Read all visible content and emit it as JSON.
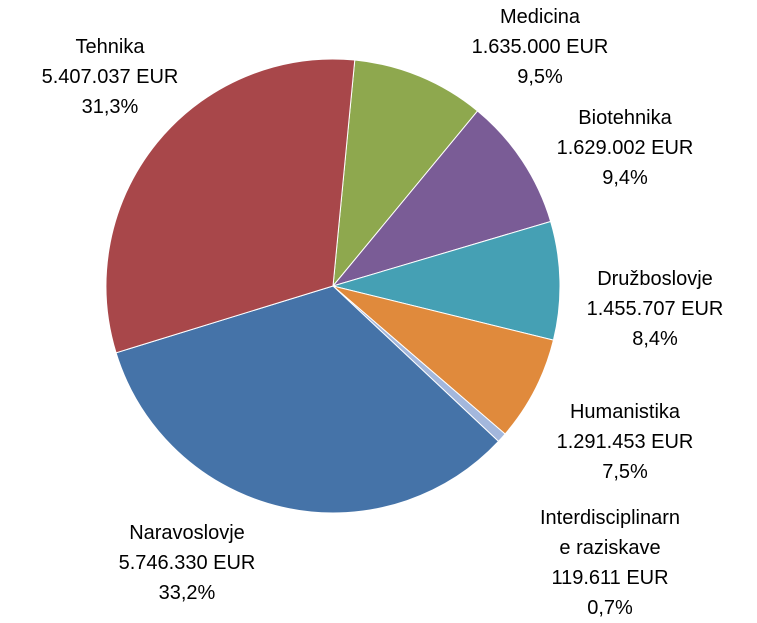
{
  "chart_data": {
    "type": "pie",
    "categories": [
      "Medicina",
      "Biotehnika",
      "Družboslovje",
      "Humanistika",
      "Interdisciplinarne raziskave",
      "Naravoslovje",
      "Tehnika"
    ],
    "values": [
      1635000,
      1629002,
      1455707,
      1291453,
      119611,
      5746330,
      5407037
    ],
    "value_labels": [
      "1.635.000 EUR",
      "1.629.002 EUR",
      "1.455.707 EUR",
      "1.291.453 EUR",
      "119.611 EUR",
      "5.746.330 EUR",
      "5.407.037 EUR"
    ],
    "shares": [
      9.5,
      9.4,
      8.4,
      7.5,
      0.7,
      33.2,
      31.3
    ],
    "share_labels": [
      "9,5%",
      "9,4%",
      "8,4%",
      "7,5%",
      "0,7%",
      "33,2%",
      "31,3%"
    ],
    "colors": [
      "#8ea84e",
      "#7a5c96",
      "#45a0b4",
      "#e08a3c",
      "#a3b7dc",
      "#4573a8",
      "#a8474a"
    ]
  }
}
